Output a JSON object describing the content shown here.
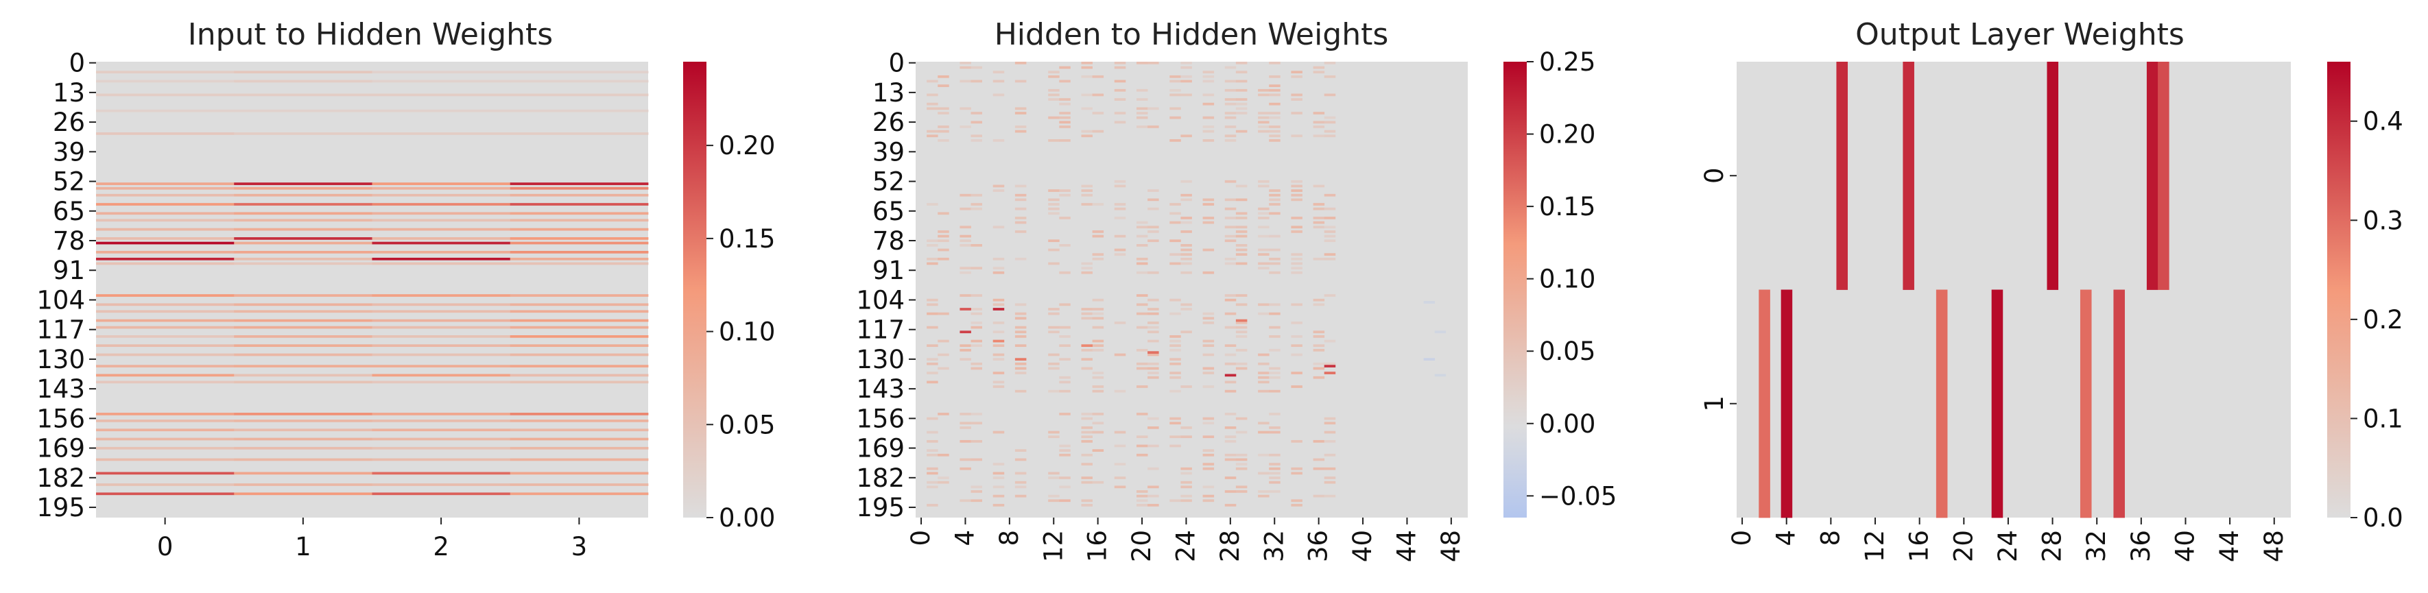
{
  "chart_data": [
    {
      "type": "heatmap",
      "title": "Input to Hidden Weights",
      "xlabel": "",
      "ylabel": "",
      "n_rows": 200,
      "n_cols": 4,
      "x_tick_labels": [
        "0",
        "1",
        "2",
        "3"
      ],
      "y_tick_labels": [
        "0",
        "13",
        "26",
        "39",
        "52",
        "65",
        "78",
        "91",
        "104",
        "117",
        "130",
        "143",
        "156",
        "169",
        "182",
        "195"
      ],
      "colorbar": {
        "min": 0.0,
        "max": 0.245,
        "ticks": [
          "0.00",
          "0.05",
          "0.10",
          "0.15",
          "0.20"
        ]
      },
      "colormap": "coolwarm",
      "background_value": 0.0,
      "nonzero_rows": [
        {
          "row": 4,
          "values": [
            0.03,
            0.04,
            0.02,
            0.02
          ]
        },
        {
          "row": 8,
          "values": [
            0.02,
            0.03,
            0.02,
            0.02
          ]
        },
        {
          "row": 14,
          "values": [
            0.03,
            0.03,
            0.03,
            0.03
          ]
        },
        {
          "row": 21,
          "values": [
            0.02,
            0.02,
            0.02,
            0.02
          ]
        },
        {
          "row": 31,
          "values": [
            0.04,
            0.03,
            0.03,
            0.03
          ]
        },
        {
          "row": 53,
          "values": [
            0.1,
            0.22,
            0.12,
            0.22
          ]
        },
        {
          "row": 55,
          "values": [
            0.08,
            0.1,
            0.08,
            0.14
          ]
        },
        {
          "row": 58,
          "values": [
            0.06,
            0.08,
            0.06,
            0.08
          ]
        },
        {
          "row": 62,
          "values": [
            0.12,
            0.16,
            0.14,
            0.18
          ]
        },
        {
          "row": 66,
          "values": [
            0.08,
            0.1,
            0.08,
            0.1
          ]
        },
        {
          "row": 69,
          "values": [
            0.05,
            0.07,
            0.05,
            0.07
          ]
        },
        {
          "row": 73,
          "values": [
            0.07,
            0.09,
            0.08,
            0.1
          ]
        },
        {
          "row": 77,
          "values": [
            0.06,
            0.21,
            0.07,
            0.12
          ]
        },
        {
          "row": 79,
          "values": [
            0.24,
            0.09,
            0.22,
            0.13
          ]
        },
        {
          "row": 83,
          "values": [
            0.09,
            0.1,
            0.09,
            0.13
          ]
        },
        {
          "row": 86,
          "values": [
            0.22,
            0.06,
            0.23,
            0.09
          ]
        },
        {
          "row": 88,
          "values": [
            0.05,
            0.04,
            0.05,
            0.05
          ]
        },
        {
          "row": 102,
          "values": [
            0.12,
            0.09,
            0.11,
            0.09
          ]
        },
        {
          "row": 106,
          "values": [
            0.06,
            0.08,
            0.06,
            0.08
          ]
        },
        {
          "row": 109,
          "values": [
            0.05,
            0.07,
            0.06,
            0.09
          ]
        },
        {
          "row": 113,
          "values": [
            0.09,
            0.1,
            0.08,
            0.11
          ]
        },
        {
          "row": 116,
          "values": [
            0.07,
            0.09,
            0.06,
            0.09
          ]
        },
        {
          "row": 120,
          "values": [
            0.04,
            0.08,
            0.05,
            0.12
          ]
        },
        {
          "row": 124,
          "values": [
            0.06,
            0.09,
            0.07,
            0.09
          ]
        },
        {
          "row": 128,
          "values": [
            0.05,
            0.07,
            0.05,
            0.07
          ]
        },
        {
          "row": 133,
          "values": [
            0.08,
            0.09,
            0.09,
            0.1
          ]
        },
        {
          "row": 137,
          "values": [
            0.11,
            0.05,
            0.11,
            0.06
          ]
        },
        {
          "row": 140,
          "values": [
            0.04,
            0.05,
            0.04,
            0.05
          ]
        },
        {
          "row": 154,
          "values": [
            0.11,
            0.13,
            0.1,
            0.14
          ]
        },
        {
          "row": 157,
          "values": [
            0.06,
            0.07,
            0.06,
            0.08
          ]
        },
        {
          "row": 161,
          "values": [
            0.08,
            0.06,
            0.08,
            0.07
          ]
        },
        {
          "row": 165,
          "values": [
            0.07,
            0.08,
            0.07,
            0.09
          ]
        },
        {
          "row": 169,
          "values": [
            0.05,
            0.06,
            0.05,
            0.07
          ]
        },
        {
          "row": 174,
          "values": [
            0.06,
            0.07,
            0.06,
            0.08
          ]
        },
        {
          "row": 180,
          "values": [
            0.18,
            0.1,
            0.16,
            0.1
          ]
        },
        {
          "row": 185,
          "values": [
            0.05,
            0.07,
            0.06,
            0.07
          ]
        },
        {
          "row": 189,
          "values": [
            0.18,
            0.12,
            0.17,
            0.11
          ]
        }
      ]
    },
    {
      "type": "heatmap",
      "title": "Hidden to Hidden Weights",
      "xlabel": "",
      "ylabel": "",
      "n_rows": 200,
      "n_cols": 50,
      "x_tick_labels": [
        "0",
        "4",
        "8",
        "12",
        "16",
        "20",
        "24",
        "28",
        "32",
        "36",
        "40",
        "44",
        "48"
      ],
      "y_tick_labels": [
        "0",
        "13",
        "26",
        "39",
        "52",
        "65",
        "78",
        "91",
        "104",
        "117",
        "130",
        "143",
        "156",
        "169",
        "182",
        "195"
      ],
      "colorbar": {
        "min": -0.065,
        "max": 0.25,
        "ticks": [
          "−0.05",
          "0.00",
          "0.05",
          "0.10",
          "0.15",
          "0.20",
          "0.25"
        ]
      },
      "colormap": "coolwarm",
      "background_value": 0.0,
      "active_columns": [
        1,
        2,
        4,
        5,
        7,
        9,
        12,
        13,
        15,
        16,
        18,
        20,
        21,
        23,
        24,
        26,
        28,
        29,
        31,
        32,
        34,
        36,
        37
      ],
      "active_row_bands": [
        [
          0,
          35
        ],
        [
          52,
          92
        ],
        [
          102,
          145
        ],
        [
          154,
          195
        ]
      ],
      "strong_cells": [
        {
          "row": 108,
          "col": 4,
          "value": 0.18
        },
        {
          "row": 108,
          "col": 7,
          "value": 0.22
        },
        {
          "row": 118,
          "col": 4,
          "value": 0.2
        },
        {
          "row": 122,
          "col": 7,
          "value": 0.14
        },
        {
          "row": 127,
          "col": 21,
          "value": 0.16
        },
        {
          "row": 130,
          "col": 9,
          "value": 0.15
        },
        {
          "row": 137,
          "col": 28,
          "value": 0.22
        },
        {
          "row": 133,
          "col": 37,
          "value": 0.21
        },
        {
          "row": 136,
          "col": 37,
          "value": 0.16
        },
        {
          "row": 113,
          "col": 29,
          "value": 0.15
        },
        {
          "row": 124,
          "col": 15,
          "value": 0.14
        }
      ],
      "negative_cells": [
        {
          "row": 105,
          "col": 46,
          "value": -0.02
        },
        {
          "row": 118,
          "col": 47,
          "value": -0.02
        },
        {
          "row": 130,
          "col": 46,
          "value": -0.03
        },
        {
          "row": 137,
          "col": 47,
          "value": -0.02
        }
      ]
    },
    {
      "type": "heatmap",
      "title": "Output Layer Weights",
      "xlabel": "",
      "ylabel": "",
      "n_rows": 2,
      "n_cols": 50,
      "x_tick_labels": [
        "0",
        "4",
        "8",
        "12",
        "16",
        "20",
        "24",
        "28",
        "32",
        "36",
        "40",
        "44",
        "48"
      ],
      "y_tick_labels": [
        "0",
        "1"
      ],
      "colorbar": {
        "min": 0.0,
        "max": 0.46,
        "ticks": [
          "0.0",
          "0.1",
          "0.2",
          "0.3",
          "0.4"
        ]
      },
      "colormap": "coolwarm",
      "background_value": 0.0,
      "cells": [
        {
          "row": 0,
          "col": 9,
          "value": 0.4
        },
        {
          "row": 0,
          "col": 15,
          "value": 0.4
        },
        {
          "row": 0,
          "col": 28,
          "value": 0.45
        },
        {
          "row": 0,
          "col": 37,
          "value": 0.43
        },
        {
          "row": 0,
          "col": 38,
          "value": 0.35
        },
        {
          "row": 1,
          "col": 2,
          "value": 0.3
        },
        {
          "row": 1,
          "col": 4,
          "value": 0.45
        },
        {
          "row": 1,
          "col": 18,
          "value": 0.3
        },
        {
          "row": 1,
          "col": 23,
          "value": 0.45
        },
        {
          "row": 1,
          "col": 31,
          "value": 0.3
        },
        {
          "row": 1,
          "col": 34,
          "value": 0.36
        }
      ]
    }
  ]
}
